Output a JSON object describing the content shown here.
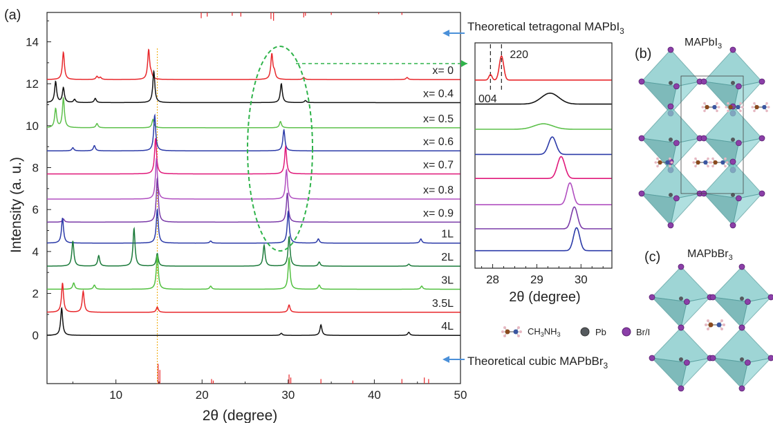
{
  "panel_a": {
    "label": "(a)",
    "chart_data": {
      "type": "line",
      "xlabel": "2θ (degree)",
      "ylabel": "Intensity (a. u.)",
      "xlim": [
        2,
        50
      ],
      "ylim": [
        -2.3,
        15.4
      ],
      "xticks": [
        10,
        20,
        30,
        40,
        50
      ],
      "yticks": [
        0,
        2,
        4,
        6,
        8,
        10,
        12,
        14
      ],
      "grid": false,
      "series": [
        {
          "name": "x= 0",
          "color": "#e8272b",
          "offset": 12.2,
          "peaks": [
            [
              3.9,
              1.3
            ],
            [
              7.8,
              0.15
            ],
            [
              8.2,
              0.1
            ],
            [
              13.8,
              1.4
            ],
            [
              14.1,
              0.2
            ],
            [
              28.1,
              1.2
            ],
            [
              28.4,
              0.3
            ],
            [
              31.8,
              0.1
            ],
            [
              43.8,
              0.1
            ]
          ]
        },
        {
          "name": "x= 0.4",
          "color": "#111111",
          "offset": 11.1,
          "peaks": [
            [
              3.0,
              1.0
            ],
            [
              3.9,
              0.7
            ],
            [
              5.2,
              0.15
            ],
            [
              7.6,
              0.2
            ],
            [
              14.4,
              1.5
            ],
            [
              29.2,
              0.9
            ],
            [
              32.0,
              0.1
            ]
          ]
        },
        {
          "name": "x= 0.5",
          "color": "#5cc04a",
          "offset": 9.9,
          "peaks": [
            [
              3.0,
              0.9
            ],
            [
              3.9,
              1.4
            ],
            [
              7.8,
              0.2
            ],
            [
              14.3,
              0.4
            ],
            [
              29.1,
              0.3
            ]
          ]
        },
        {
          "name": "x= 0.6",
          "color": "#2b3aa8",
          "offset": 8.8,
          "peaks": [
            [
              5.0,
              0.15
            ],
            [
              7.5,
              0.25
            ],
            [
              14.5,
              1.7
            ],
            [
              29.5,
              1.0
            ]
          ]
        },
        {
          "name": "x= 0.7",
          "color": "#e0187a",
          "offset": 7.7,
          "peaks": [
            [
              14.6,
              1.7
            ],
            [
              29.7,
              1.3
            ]
          ]
        },
        {
          "name": "x= 0.8",
          "color": "#b04ec0",
          "offset": 6.5,
          "peaks": [
            [
              14.7,
              1.9
            ],
            [
              29.8,
              1.4
            ]
          ]
        },
        {
          "name": "x= 0.9",
          "color": "#7a3aa8",
          "offset": 5.4,
          "peaks": [
            [
              3.9,
              0.15
            ],
            [
              14.8,
              2.1
            ],
            [
              29.9,
              1.4
            ]
          ]
        },
        {
          "name": "1L",
          "color": "#2b3aa8",
          "offset": 4.4,
          "peaks": [
            [
              3.8,
              1.2
            ],
            [
              14.8,
              1.6
            ],
            [
              21.0,
              0.1
            ],
            [
              30.0,
              1.5
            ],
            [
              33.5,
              0.2
            ],
            [
              45.4,
              0.2
            ]
          ]
        },
        {
          "name": "2L",
          "color": "#1b7a3a",
          "offset": 3.3,
          "peaks": [
            [
              5.0,
              1.2
            ],
            [
              8.0,
              0.5
            ],
            [
              12.1,
              1.8
            ],
            [
              14.8,
              0.6
            ],
            [
              27.2,
              1.0
            ],
            [
              30.1,
              1.4
            ],
            [
              33.6,
              0.2
            ],
            [
              44.0,
              0.1
            ]
          ]
        },
        {
          "name": "3L",
          "color": "#52c040",
          "offset": 2.2,
          "peaks": [
            [
              5.1,
              0.3
            ],
            [
              7.5,
              0.2
            ],
            [
              14.8,
              1.6
            ],
            [
              21.0,
              0.15
            ],
            [
              30.1,
              1.5
            ],
            [
              33.6,
              0.2
            ],
            [
              45.5,
              0.15
            ]
          ]
        },
        {
          "name": "3.5L",
          "color": "#e8272b",
          "offset": 1.1,
          "peaks": [
            [
              3.8,
              1.4
            ],
            [
              6.2,
              1.0
            ],
            [
              14.8,
              0.25
            ],
            [
              30.1,
              0.35
            ]
          ]
        },
        {
          "name": "4L",
          "color": "#111111",
          "offset": 0.0,
          "peaks": [
            [
              3.7,
              1.3
            ],
            [
              29.2,
              0.1
            ],
            [
              33.8,
              0.5
            ],
            [
              44.0,
              0.15
            ]
          ]
        }
      ],
      "reference_tetragonal": {
        "name": "Theoretical tetragonal MAPbI3",
        "color": "#e8272b",
        "y_top": 15.4,
        "x": [
          19.9,
          20.6,
          23.5,
          24.5,
          28.0,
          28.3,
          31.8,
          32.0,
          35.0,
          40.5,
          43.2
        ],
        "h": [
          0.7,
          0.5,
          0.4,
          0.5,
          0.8,
          1.0,
          0.6,
          0.4,
          0.3,
          0.2,
          0.3
        ]
      },
      "reference_cubic": {
        "name": "Theoretical cubic MAPbBr3",
        "color": "#e8272b",
        "y_bottom": -2.3,
        "x": [
          14.9,
          15.1,
          21.1,
          21.3,
          30.1,
          30.3,
          33.8,
          37.5,
          43.2,
          45.8,
          46.3
        ],
        "h": [
          1.3,
          0.9,
          0.3,
          0.2,
          0.6,
          0.4,
          0.3,
          0.2,
          0.3,
          0.4,
          0.3
        ]
      },
      "guide_line_x": 14.8,
      "annotations": [
        "x= 0",
        "x= 0.4",
        "x= 0.5",
        "x= 0.6",
        "x= 0.7",
        "x= 0.8",
        "x= 0.9",
        "1L",
        "2L",
        "3L",
        "3.5L",
        "4L"
      ]
    },
    "ref_top_label": "Theoretical tetragonal MAPbI",
    "ref_top_sub": "3",
    "ref_bottom_label": "Theoretical cubic MAPbBr",
    "ref_bottom_sub": "3"
  },
  "inset": {
    "chart_data": {
      "type": "line",
      "xlabel": "2θ (degree)",
      "xlim": [
        27.6,
        30.7
      ],
      "xticks": [
        28,
        29,
        30
      ],
      "peak_labels": [
        "004",
        "220"
      ],
      "dashed_lines_x": [
        27.95,
        28.2
      ],
      "series": [
        {
          "name": "x= 0",
          "color": "#e8272b",
          "offset": 12.2,
          "center": 28.2,
          "width": 0.07,
          "height": 1.1,
          "extra": [
            [
              27.95,
              0.25
            ]
          ]
        },
        {
          "name": "x= 0.4",
          "color": "#111111",
          "offset": 11.1,
          "center": 29.3,
          "width": 0.28,
          "height": 0.5
        },
        {
          "name": "x= 0.5",
          "color": "#5cc04a",
          "offset": 9.95,
          "center": 29.15,
          "width": 0.3,
          "height": 0.25
        },
        {
          "name": "x= 0.6",
          "color": "#2b3aa8",
          "offset": 8.8,
          "center": 29.35,
          "width": 0.12,
          "height": 0.8
        },
        {
          "name": "x= 0.7",
          "color": "#e0187a",
          "offset": 7.7,
          "center": 29.55,
          "width": 0.12,
          "height": 1.0
        },
        {
          "name": "x= 0.8",
          "color": "#b04ec0",
          "offset": 6.5,
          "center": 29.75,
          "width": 0.1,
          "height": 1.0
        },
        {
          "name": "x= 0.9",
          "color": "#7a3aa8",
          "offset": 5.4,
          "center": 29.85,
          "width": 0.1,
          "height": 1.0
        },
        {
          "name": "1L",
          "color": "#2b3aa8",
          "offset": 4.4,
          "center": 29.9,
          "width": 0.1,
          "height": 1.05
        }
      ]
    }
  },
  "panel_b": {
    "label": "(b)",
    "title": "MAPbI",
    "title_sub": "3"
  },
  "panel_c": {
    "label": "(c)",
    "title": "MAPbBr",
    "title_sub": "3"
  },
  "legend": {
    "ch3nh3": "CH",
    "ch3nh3_sub1": "3",
    "ch3nh3_mid": "NH",
    "ch3nh3_sub2": "3",
    "pb": "Pb",
    "brI": "Br/I",
    "colors": {
      "pb": "#555a5e",
      "brI": "#8b3fa8",
      "c": "#8a4a1e",
      "n": "#3b56a0",
      "h": "#e6b8c2"
    }
  },
  "colors": {
    "arrow": "#4a90d9",
    "ellipse": "#2fb34a",
    "guide": "#f0a800",
    "octahedron": "#7ec8c8",
    "octa_edge": "#4f9a9a"
  }
}
